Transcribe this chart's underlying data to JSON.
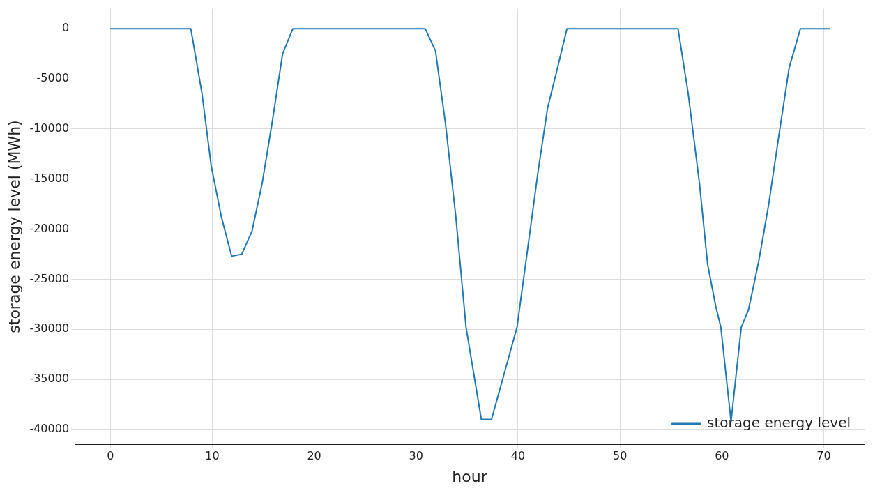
{
  "chart_data": {
    "type": "line",
    "xlabel": "hour",
    "ylabel": "storage energy level (MWh)",
    "xlim": [
      -3.5,
      74
    ],
    "ylim": [
      -41500,
      2000
    ],
    "xticks": [
      0,
      10,
      20,
      30,
      40,
      50,
      60,
      70
    ],
    "yticks": [
      0,
      -5000,
      -10000,
      -15000,
      -20000,
      -25000,
      -30000,
      -35000,
      -40000
    ],
    "grid": true,
    "legend": "bottom right",
    "marker": "none",
    "line_style": "solid",
    "series": [
      {
        "name": "storage energy level",
        "color": "#1f77b4",
        "x": [
          0,
          7.9,
          9,
          9.9,
          10.9,
          11.9,
          12.9,
          13.9,
          14.9,
          15.9,
          16.9,
          17.9,
          30.9,
          31.9,
          32.9,
          33.9,
          34.9,
          36.4,
          37.4,
          39.9,
          40.9,
          42,
          42.9,
          43.8,
          44.8,
          55.7,
          56.7,
          57.8,
          58.6,
          59.4,
          59.9,
          60.9,
          61.9,
          62.6,
          63.6,
          64.6,
          65.6,
          66.6,
          67.7,
          70.6
        ],
        "values": [
          0,
          0,
          -6500,
          -13700,
          -18800,
          -22700,
          -22500,
          -20200,
          -15400,
          -9200,
          -2500,
          0,
          0,
          -2200,
          -9600,
          -18800,
          -29800,
          -39000,
          -39000,
          -29800,
          -22300,
          -14000,
          -7900,
          -4200,
          0,
          0,
          -6500,
          -15400,
          -23500,
          -27700,
          -29800,
          -39200,
          -29800,
          -28100,
          -23300,
          -17500,
          -10600,
          -3900,
          0,
          0
        ]
      }
    ]
  }
}
